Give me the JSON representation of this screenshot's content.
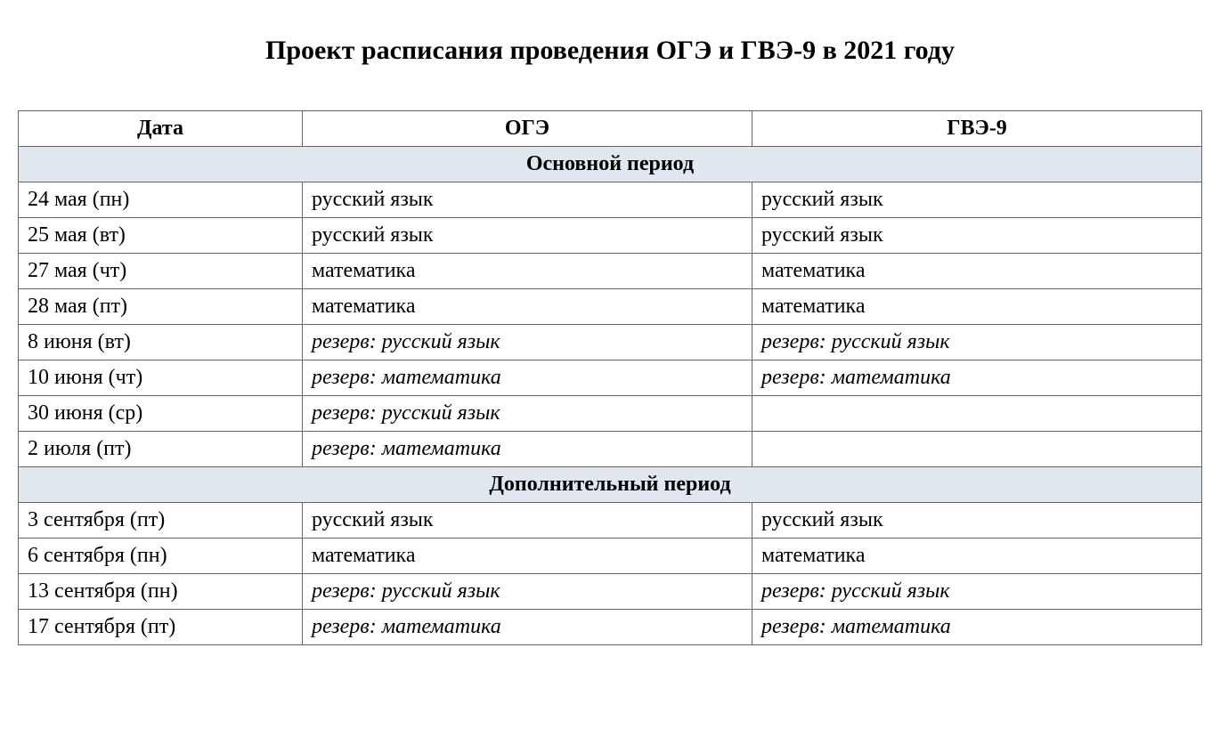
{
  "title": "Проект расписания проведения ОГЭ и ГВЭ-9 в 2021 году",
  "table": {
    "columns": [
      "Дата",
      "ОГЭ",
      "ГВЭ-9"
    ],
    "column_widths": [
      "24%",
      "38%",
      "38%"
    ],
    "header_bg_color": "#ffffff",
    "section_bg_color": "#e0e7ef",
    "border_color": "#666666",
    "font_family": "Times New Roman",
    "title_fontsize": 30,
    "cell_fontsize": 24,
    "sections": [
      {
        "label": "Основной период",
        "rows": [
          {
            "date": "24 мая (пн)",
            "oge": "русский язык",
            "gve": "русский язык",
            "italic": false
          },
          {
            "date": "25 мая (вт)",
            "oge": "русский язык",
            "gve": "русский язык",
            "italic": false
          },
          {
            "date": "27 мая (чт)",
            "oge": "математика",
            "gve": "математика",
            "italic": false
          },
          {
            "date": "28 мая (пт)",
            "oge": "математика",
            "gve": "математика",
            "italic": false
          },
          {
            "date": "8 июня (вт)",
            "oge": "резерв: русский язык",
            "gve": "резерв: русский язык",
            "italic": true
          },
          {
            "date": "10 июня (чт)",
            "oge": "резерв: математика",
            "gve": "резерв: математика",
            "italic": true
          },
          {
            "date": "30 июня (ср)",
            "oge": "резерв: русский язык",
            "gve": "",
            "italic": true
          },
          {
            "date": "2 июля (пт)",
            "oge": "резерв: математика",
            "gve": "",
            "italic": true
          }
        ]
      },
      {
        "label": "Дополнительный период",
        "rows": [
          {
            "date": "3 сентября (пт)",
            "oge": "русский язык",
            "gve": "русский язык",
            "italic": false
          },
          {
            "date": "6 сентября (пн)",
            "oge": "математика",
            "gve": "математика",
            "italic": false
          },
          {
            "date": "13 сентября (пн)",
            "oge": "резерв: русский язык",
            "gve": "резерв: русский язык",
            "italic": true
          },
          {
            "date": "17 сентября (пт)",
            "oge": "резерв: математика",
            "gve": "резерв: математика",
            "italic": true
          }
        ]
      }
    ]
  }
}
